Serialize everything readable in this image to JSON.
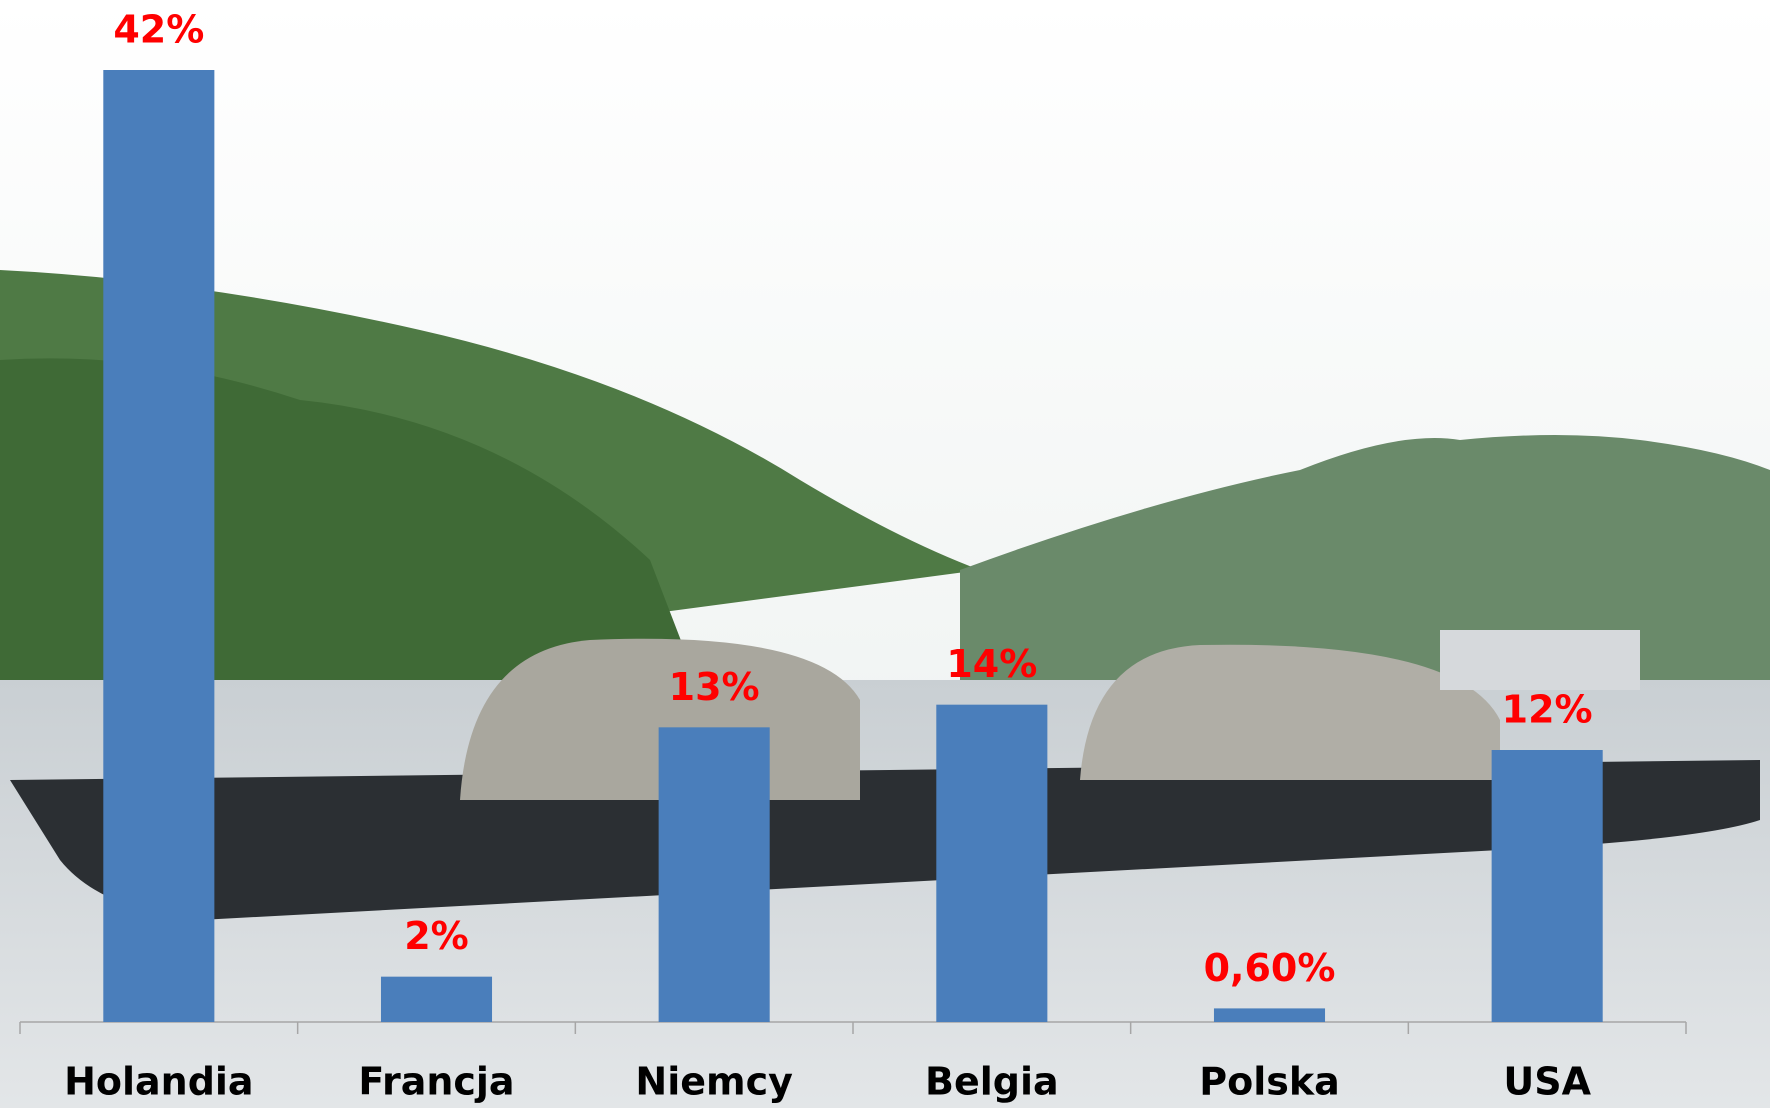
{
  "chart_data": {
    "type": "bar",
    "categories": [
      "Holandia",
      "Francja",
      "Niemcy",
      "Belgia",
      "Polska",
      "USA"
    ],
    "values": [
      42,
      2,
      13,
      14,
      0.6,
      12
    ],
    "value_labels": [
      "42%",
      "2%",
      "13%",
      "14%",
      "0,60%",
      "12%"
    ],
    "color": "#4a7ebb",
    "label_color": "#ff0000",
    "ylim": [
      0,
      42
    ],
    "grid": false
  }
}
